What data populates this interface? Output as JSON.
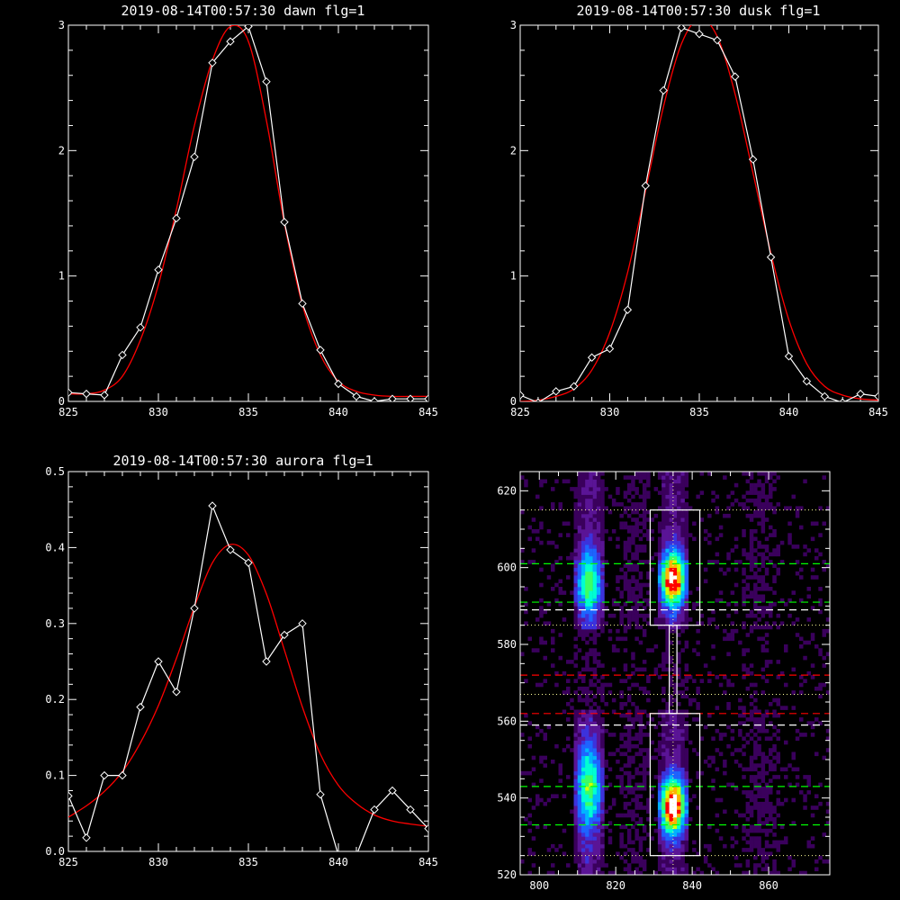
{
  "colors": {
    "background": "#000000",
    "axes": "#ffffff",
    "measured": "#ffffff",
    "fit": "#ff0000",
    "box": "#ffffff",
    "guide_green": "#00ff00",
    "guide_white": "#ffffff",
    "guide_red": "#ff0000",
    "guide_dotted": "#ffff99"
  },
  "chart_data": [
    {
      "type": "line",
      "title": "2019-08-14T00:57:30 dawn flg=1",
      "xlim": [
        825,
        845
      ],
      "ylim": [
        0,
        3
      ],
      "xticks": [
        "825",
        "830",
        "835",
        "840",
        "845"
      ],
      "yticks": [
        "0",
        "1",
        "2",
        "3"
      ],
      "series": [
        {
          "style": "line-diamond",
          "x": [
            825,
            826,
            827,
            828,
            829,
            830,
            831,
            832,
            833,
            834,
            835,
            836,
            837,
            838,
            839,
            840,
            841,
            842,
            843,
            844,
            845
          ],
          "values": [
            0.07,
            0.06,
            0.05,
            0.37,
            0.59,
            1.05,
            1.46,
            1.95,
            2.7,
            2.87,
            2.99,
            2.55,
            1.43,
            0.78,
            0.41,
            0.14,
            0.04,
            0.0,
            0.02,
            0.02,
            0.02
          ]
        },
        {
          "style": "line",
          "x": [
            825,
            826,
            827,
            828,
            829,
            830,
            831,
            832,
            833,
            834,
            835,
            836,
            837,
            838,
            839,
            840,
            841,
            842,
            843,
            844,
            845
          ],
          "values": [
            0.06,
            0.06,
            0.09,
            0.2,
            0.49,
            0.93,
            1.53,
            2.2,
            2.72,
            2.99,
            2.87,
            2.24,
            1.42,
            0.77,
            0.37,
            0.16,
            0.08,
            0.05,
            0.04,
            0.04,
            0.04
          ]
        }
      ]
    },
    {
      "type": "line",
      "title": "2019-08-14T00:57:30 dusk flg=1",
      "xlim": [
        825,
        845
      ],
      "ylim": [
        0,
        3
      ],
      "xticks": [
        "825",
        "830",
        "835",
        "840",
        "845"
      ],
      "yticks": [
        "0",
        "1",
        "2",
        "3"
      ],
      "series": [
        {
          "style": "line-diamond",
          "x": [
            825,
            826,
            827,
            828,
            829,
            830,
            831,
            832,
            833,
            834,
            835,
            836,
            837,
            838,
            839,
            840,
            841,
            842,
            843,
            844,
            845
          ],
          "values": [
            0.05,
            -0.01,
            0.08,
            0.12,
            0.35,
            0.42,
            0.73,
            1.72,
            2.48,
            2.98,
            2.93,
            2.88,
            2.59,
            1.93,
            1.15,
            0.36,
            0.16,
            0.04,
            -0.01,
            0.06,
            0.04
          ]
        },
        {
          "style": "line",
          "x": [
            825,
            826,
            827,
            828,
            829,
            830,
            831,
            832,
            833,
            834,
            835,
            836,
            837,
            838,
            839,
            840,
            841,
            842,
            843,
            844,
            845
          ],
          "values": [
            0.0,
            0.01,
            0.04,
            0.1,
            0.25,
            0.55,
            1.03,
            1.68,
            2.35,
            2.85,
            3.05,
            2.91,
            2.45,
            1.82,
            1.18,
            0.65,
            0.3,
            0.12,
            0.05,
            0.02,
            0.01
          ]
        }
      ]
    },
    {
      "type": "line",
      "title": "2019-08-14T00:57:30 aurora flg=1",
      "xlim": [
        825,
        845
      ],
      "ylim": [
        0,
        0.5
      ],
      "xticks": [
        "825",
        "830",
        "835",
        "840",
        "845"
      ],
      "yticks": [
        "0.0",
        "0.1",
        "0.2",
        "0.3",
        "0.4",
        "0.5"
      ],
      "series": [
        {
          "style": "line-diamond",
          "x": [
            825,
            826,
            827,
            828,
            829,
            830,
            831,
            832,
            833,
            834,
            835,
            836,
            837,
            838,
            839,
            840,
            841,
            842,
            843,
            844,
            845
          ],
          "values": [
            0.073,
            0.018,
            0.1,
            0.1,
            0.19,
            0.25,
            0.21,
            0.32,
            0.455,
            0.397,
            0.38,
            0.25,
            0.285,
            0.3,
            0.075,
            -0.005,
            -0.005,
            0.055,
            0.08,
            0.055,
            0.03
          ]
        },
        {
          "style": "line",
          "x": [
            825,
            826,
            827,
            828,
            829,
            830,
            831,
            832,
            833,
            834,
            835,
            836,
            837,
            838,
            839,
            840,
            841,
            842,
            843,
            844,
            845
          ],
          "values": [
            0.045,
            0.06,
            0.079,
            0.105,
            0.143,
            0.192,
            0.254,
            0.322,
            0.38,
            0.404,
            0.39,
            0.339,
            0.265,
            0.19,
            0.128,
            0.087,
            0.063,
            0.048,
            0.04,
            0.036,
            0.033
          ]
        }
      ]
    },
    {
      "type": "heatmap",
      "xlim": [
        795,
        876
      ],
      "ylim": [
        520,
        625
      ],
      "xticks": [
        "800",
        "820",
        "840",
        "860"
      ],
      "yticks": [
        "520",
        "540",
        "560",
        "580",
        "600",
        "620"
      ],
      "colormap": [
        "#000000",
        "#3a005c",
        "#5a1496",
        "#3c32dc",
        "#1e64ff",
        "#00b4ff",
        "#00ffd2",
        "#3cff64",
        "#d2ff00",
        "#ffb400",
        "#ff0000",
        "#ffffff"
      ],
      "emission_bands": [
        {
          "center_x": 813,
          "half_width": 2.6,
          "spots": [
            {
              "y": 596,
              "peak": 0.55,
              "sigma": 6
            },
            {
              "y": 543,
              "peak": 0.55,
              "sigma": 8
            }
          ]
        },
        {
          "center_x": 835,
          "half_width": 2.5,
          "spots": [
            {
              "y": 597,
              "peak": 0.95,
              "sigma": 5
            },
            {
              "y": 538,
              "peak": 1.0,
              "sigma": 5
            }
          ]
        },
        {
          "center_x": 825,
          "half_width": 2.8,
          "spots": []
        },
        {
          "center_x": 858,
          "half_width": 3.2,
          "spots": []
        }
      ],
      "boxes": [
        {
          "x": [
            829,
            842
          ],
          "y": [
            585,
            615
          ]
        },
        {
          "x": [
            829,
            842
          ],
          "y": [
            525,
            562
          ]
        },
        {
          "x": [
            834,
            836
          ],
          "y": [
            562,
            585
          ]
        }
      ],
      "dashed_lines": [
        {
          "y": 601,
          "color": "green"
        },
        {
          "y": 591,
          "color": "green"
        },
        {
          "y": 589,
          "color": "white"
        },
        {
          "y": 572,
          "color": "red"
        },
        {
          "y": 562,
          "color": "red"
        },
        {
          "y": 559,
          "color": "white"
        },
        {
          "y": 543,
          "color": "green"
        },
        {
          "y": 533,
          "color": "green"
        }
      ],
      "dotted_lines": [
        {
          "y": 615,
          "orientation": "h"
        },
        {
          "y": 585,
          "orientation": "h"
        },
        {
          "y": 567,
          "orientation": "h"
        },
        {
          "y": 525,
          "orientation": "h"
        },
        {
          "x": 835,
          "orientation": "v"
        }
      ]
    }
  ]
}
